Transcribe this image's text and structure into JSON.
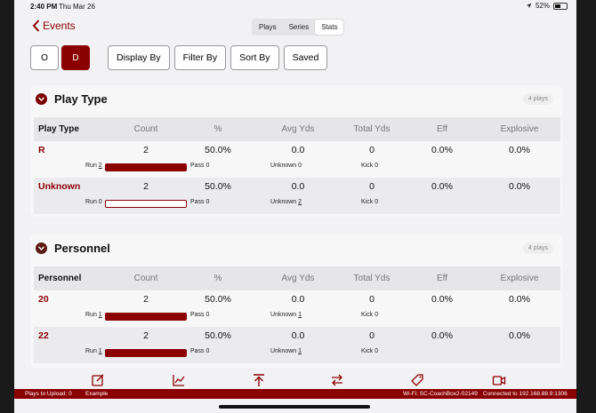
{
  "status": {
    "time": "2:40 PM",
    "date": "Thu Mar 26",
    "battery": "52%",
    "battery_fraction": 0.52
  },
  "nav": {
    "back_label": "Events",
    "tabs": [
      "Plays",
      "Series",
      "Stats"
    ],
    "active_tab": "Stats"
  },
  "toolbar": {
    "o_label": "O",
    "d_label": "D",
    "display_by": "Display By",
    "filter_by": "Filter By",
    "sort_by": "Sort By",
    "saved": "Saved"
  },
  "columns_common": [
    "Count",
    "%",
    "Avg Yds",
    "Total Yds",
    "Eff",
    "Explosive"
  ],
  "sections": [
    {
      "title": "Play Type",
      "badge": "4 plays",
      "header": "Play Type",
      "rows": [
        {
          "name": "R",
          "count": "2",
          "pct": "50.0%",
          "avg": "0.0",
          "total": "0",
          "eff": "0.0%",
          "expl": "0.0%",
          "run_label": "Run",
          "run": "2",
          "run_fraction": 1.0,
          "pass_label": "Pass",
          "pass": "0",
          "unknown_label": "Unknown",
          "unknown": "0",
          "kick_label": "Kick",
          "kick": "0"
        },
        {
          "name": "Unknown",
          "count": "2",
          "pct": "50.0%",
          "avg": "0.0",
          "total": "0",
          "eff": "0.0%",
          "expl": "0.0%",
          "run_label": "Run",
          "run": "0",
          "run_fraction": 0.0,
          "pass_label": "Pass",
          "pass": "0",
          "unknown_label": "Unknown",
          "unknown": "2",
          "kick_label": "Kick",
          "kick": "0"
        }
      ]
    },
    {
      "title": "Personnel",
      "badge": "4 plays",
      "header": "Personnel",
      "rows": [
        {
          "name": "20",
          "count": "2",
          "pct": "50.0%",
          "avg": "0.0",
          "total": "0",
          "eff": "0.0%",
          "expl": "0.0%",
          "run_label": "Run",
          "run": "1",
          "run_fraction": 1.0,
          "pass_label": "Pass",
          "pass": "0",
          "unknown_label": "Unknown",
          "unknown": "1",
          "kick_label": "Kick",
          "kick": "0"
        },
        {
          "name": "22",
          "count": "2",
          "pct": "50.0%",
          "avg": "0.0",
          "total": "0",
          "eff": "0.0%",
          "expl": "0.0%",
          "run_label": "Run",
          "run": "1",
          "run_fraction": 1.0,
          "pass_label": "Pass",
          "pass": "0",
          "unknown_label": "Unknown",
          "unknown": "1",
          "kick_label": "Kick",
          "kick": "0"
        }
      ]
    }
  ],
  "tabbar_icons": [
    "edit-icon",
    "chart-icon",
    "upload-icon",
    "swap-icon",
    "tag-icon",
    "video-icon"
  ],
  "footer": {
    "plays_to_upload": "Plays to Upload: 0",
    "mode": "Example",
    "wifi": "Wi-Fi: SC-CoachBox2-02149",
    "connected": "Connected to 192.168.88.9:1306"
  },
  "colors": {
    "accent": "#8b0000"
  }
}
